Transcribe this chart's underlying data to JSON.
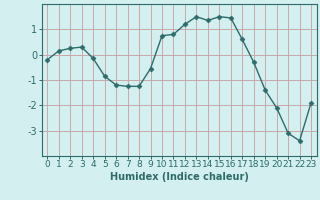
{
  "x": [
    0,
    1,
    2,
    3,
    4,
    5,
    6,
    7,
    8,
    9,
    10,
    11,
    12,
    13,
    14,
    15,
    16,
    17,
    18,
    19,
    20,
    21,
    22,
    23
  ],
  "y": [
    -0.2,
    0.15,
    0.25,
    0.3,
    -0.15,
    -0.85,
    -1.2,
    -1.25,
    -1.25,
    -0.55,
    0.75,
    0.8,
    1.2,
    1.5,
    1.35,
    1.5,
    1.45,
    0.6,
    -0.3,
    -1.4,
    -2.1,
    -3.1,
    -3.4,
    -1.9
  ],
  "xlabel": "Humidex (Indice chaleur)",
  "ylim": [
    -4,
    2
  ],
  "xlim": [
    -0.5,
    23.5
  ],
  "yticks": [
    -3,
    -2,
    -1,
    0,
    1
  ],
  "xticks": [
    0,
    1,
    2,
    3,
    4,
    5,
    6,
    7,
    8,
    9,
    10,
    11,
    12,
    13,
    14,
    15,
    16,
    17,
    18,
    19,
    20,
    21,
    22,
    23
  ],
  "line_color": "#2e6b6b",
  "marker": "D",
  "marker_size": 2.5,
  "bg_color": "#d4efef",
  "grid_color_h": "#c8a8a8",
  "grid_color_v": "#c8a8a8",
  "axis_color": "#2e6b6b",
  "label_color": "#2e6b6b",
  "tick_color": "#2e6b6b",
  "xlabel_fontsize": 7,
  "tick_fontsize": 6.5
}
